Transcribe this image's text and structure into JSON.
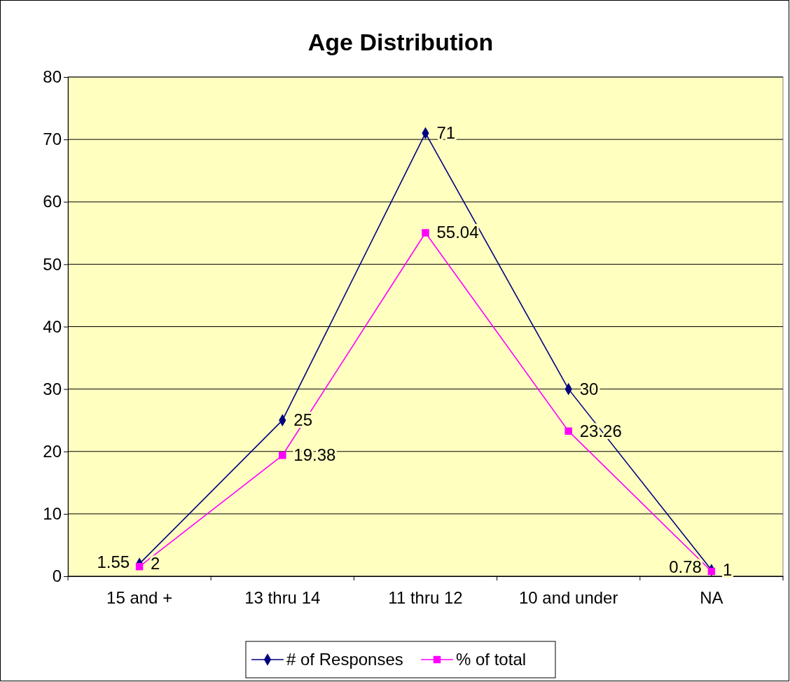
{
  "chart_data": {
    "type": "line",
    "title": "Age Distribution",
    "categories": [
      "15 and +",
      "13 thru 14",
      "11 thru 12",
      "10 and under",
      "NA"
    ],
    "series": [
      {
        "name": "# of Responses",
        "color": "#000080",
        "marker": "diamond",
        "values": [
          2,
          25,
          71,
          30,
          1
        ]
      },
      {
        "name": "% of total",
        "color": "#ff00ff",
        "marker": "square",
        "values": [
          1.55,
          19.38,
          55.04,
          23.26,
          0.78
        ]
      }
    ],
    "ylim": [
      0,
      80
    ],
    "yticks": [
      0,
      10,
      20,
      30,
      40,
      50,
      60,
      70,
      80
    ],
    "grid": "y",
    "legend": "bottom",
    "data_labels": true
  }
}
